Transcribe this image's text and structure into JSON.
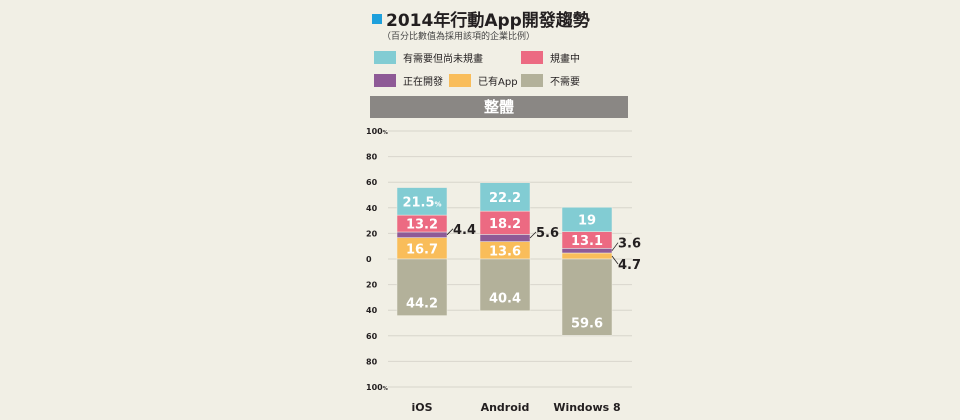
{
  "title": "2014年行動App開發趨勢",
  "subtitle": "（百分比數值為採用該項的企業比例）",
  "banner": "整體",
  "chart_data": {
    "type": "bar",
    "stacked": true,
    "title": "2014年行動App開發趨勢",
    "categories": [
      "iOS",
      "Android",
      "Windows 8"
    ],
    "ylim": [
      -100,
      100
    ],
    "yticks": [
      "100%",
      "80",
      "60",
      "40",
      "20",
      "0",
      "20",
      "40",
      "60",
      "80",
      "100%"
    ],
    "grid": true,
    "legend_position": "top",
    "series": [
      {
        "name": "已有App",
        "color": "#f9bd5a",
        "values": [
          16.7,
          13.6,
          4.7
        ],
        "direction": "up"
      },
      {
        "name": "正在開發",
        "color": "#8e5a96",
        "values": [
          4.4,
          5.6,
          3.6
        ],
        "direction": "up"
      },
      {
        "name": "規畫中",
        "color": "#ec6a82",
        "values": [
          13.2,
          18.2,
          13.1
        ],
        "direction": "up"
      },
      {
        "name": "有需要但尚未規畫",
        "color": "#82ccd3",
        "values": [
          21.5,
          22.2,
          19
        ],
        "direction": "up"
      },
      {
        "name": "不需要",
        "color": "#b3b19a",
        "values": [
          44.2,
          40.4,
          59.6
        ],
        "direction": "down"
      }
    ],
    "labels": {
      "iOS": [
        "16.7",
        "4.4",
        "13.2",
        "21.5",
        "44.2"
      ],
      "Android": [
        "13.6",
        "5.6",
        "18.2",
        "22.2",
        "40.4"
      ],
      "Windows 8": [
        "4.7",
        "3.6",
        "13.1",
        "19",
        "59.6"
      ]
    },
    "unit_mark": "%"
  },
  "legend_order": [
    3,
    2,
    1,
    0,
    4
  ]
}
